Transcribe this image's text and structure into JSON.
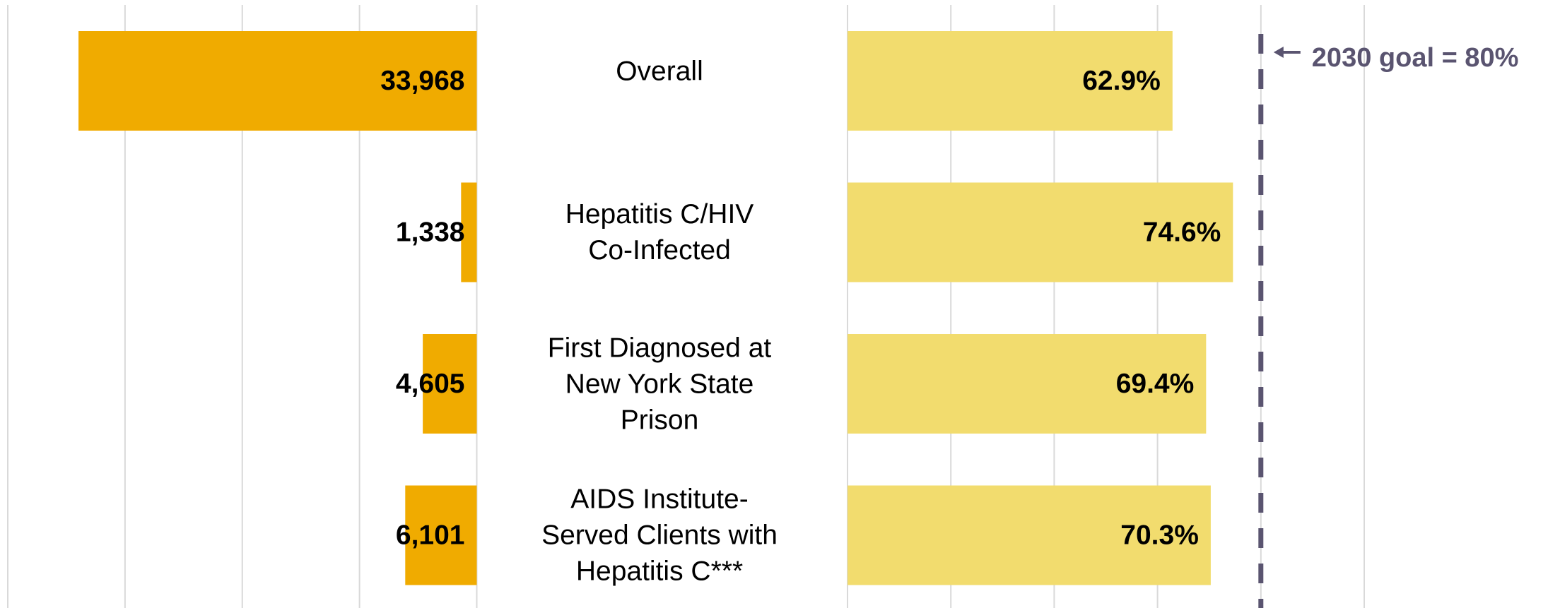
{
  "chart_data": [
    {
      "type": "bar",
      "orientation": "horizontal",
      "x_inverted": true,
      "categories": [
        "Overall",
        "Hepatitis C/HIV\nCo-Infected",
        "First Diagnosed at\nNew York State\nPrison",
        "AIDS Institute-\nServed Clients with\nHepatitis C***"
      ],
      "values": [
        33968,
        1338,
        4605,
        6101
      ],
      "value_labels": [
        "33,968",
        "1,338",
        "4,605",
        "6,101"
      ],
      "color": "#f0ab00",
      "xlim": [
        0,
        40000
      ],
      "xticks": [
        0,
        10000,
        20000,
        30000,
        40000
      ],
      "grid": true
    },
    {
      "type": "bar",
      "orientation": "horizontal",
      "x_inverted": false,
      "values": [
        62.9,
        74.6,
        69.4,
        70.3
      ],
      "value_labels": [
        "62.9%",
        "74.6%",
        "69.4%",
        "70.3%"
      ],
      "color": "#f2dc6e",
      "xlim": [
        0,
        100
      ],
      "xticks": [
        0,
        20,
        40,
        60,
        80,
        100
      ],
      "grid": true,
      "goal": {
        "value": 80,
        "label": "2030 goal = 80%",
        "color": "#5a5470"
      }
    }
  ]
}
